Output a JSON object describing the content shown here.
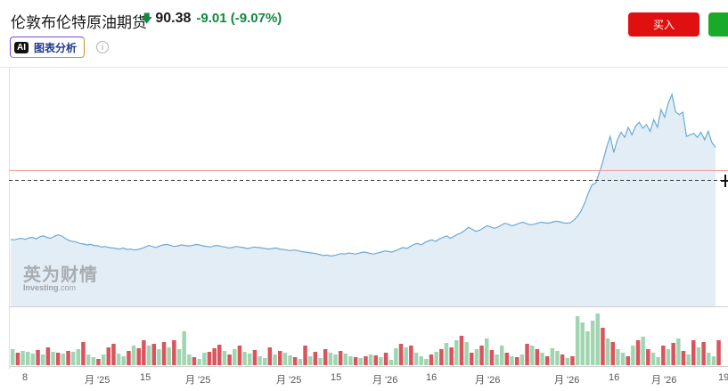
{
  "header": {
    "title": "伦敦布伦特原油期货",
    "price": "90.38",
    "change": "-9.01 (-9.07%)",
    "ai_badge": "AI",
    "ai_label": "图表分析",
    "info_glyph": "i",
    "buy_label": "买入",
    "sell_label": ""
  },
  "watermark": {
    "cn": "英为财情",
    "en_bold": "Investing",
    "en_suffix": ".com"
  },
  "colors": {
    "line": "#6aaad6",
    "area": "#e3edf6",
    "up_volume": "#9fd6b0",
    "down_volume": "#d9545c",
    "ref_line": "#f0a0a0",
    "price_down": "#0f8a3f"
  },
  "chart_data": {
    "type": "area",
    "title": "",
    "xlabel": "",
    "ylabel": "",
    "x_ticks": [
      "8",
      "月 '25",
      "15",
      "月 '25",
      "月 '25",
      "15",
      "月 '26",
      "16",
      "月 '26",
      "月 '26",
      "16",
      "月 '26",
      "19"
    ],
    "price_series": [
      48,
      47,
      49,
      50,
      48,
      51,
      52,
      49,
      53,
      55,
      52,
      50,
      54,
      57,
      55,
      50,
      46,
      44,
      43,
      40,
      39,
      37,
      38,
      36,
      35,
      33,
      34,
      32,
      31,
      30,
      29,
      31,
      28,
      29,
      27,
      28,
      30,
      33,
      36,
      34,
      32,
      35,
      37,
      38,
      36,
      34,
      35,
      37,
      36,
      35,
      36,
      38,
      37,
      35,
      34,
      33,
      35,
      36,
      34,
      33,
      31,
      32,
      34,
      33,
      32,
      30,
      31,
      33,
      32,
      31,
      30,
      29,
      30,
      31,
      29,
      28,
      27,
      26,
      27,
      26,
      24,
      23,
      22,
      21,
      20,
      18,
      16,
      17,
      15,
      16,
      18,
      20,
      19,
      21,
      20,
      19,
      21,
      23,
      22,
      20,
      19,
      21,
      23,
      25,
      24,
      23,
      26,
      29,
      32,
      30,
      34,
      38,
      40,
      37,
      42,
      45,
      47,
      44,
      49,
      52,
      55,
      50,
      54,
      58,
      61,
      66,
      72,
      68,
      64,
      66,
      70,
      75,
      73,
      70,
      72,
      76,
      80,
      78,
      75,
      77,
      80,
      82,
      79,
      77,
      78,
      80,
      82,
      81,
      80,
      82,
      84,
      83,
      81,
      80,
      81,
      86,
      94,
      104,
      120,
      140,
      156,
      159,
      180,
      202,
      230,
      252,
      220,
      245,
      260,
      250,
      270,
      255,
      272,
      280,
      268,
      275,
      262,
      285,
      270,
      305,
      290,
      318,
      335,
      301,
      295,
      300,
      252,
      255,
      258,
      250,
      260,
      245,
      262,
      240,
      230
    ],
    "volume_series": [
      {
        "v": 18,
        "d": false
      },
      {
        "v": 14,
        "d": true
      },
      {
        "v": 16,
        "d": false
      },
      {
        "v": 15,
        "d": false
      },
      {
        "v": 13,
        "d": false
      },
      {
        "v": 17,
        "d": true
      },
      {
        "v": 12,
        "d": false
      },
      {
        "v": 20,
        "d": true
      },
      {
        "v": 15,
        "d": false
      },
      {
        "v": 14,
        "d": true
      },
      {
        "v": 13,
        "d": false
      },
      {
        "v": 16,
        "d": true
      },
      {
        "v": 15,
        "d": false
      },
      {
        "v": 18,
        "d": false
      },
      {
        "v": 26,
        "d": true
      },
      {
        "v": 12,
        "d": false
      },
      {
        "v": 9,
        "d": false
      },
      {
        "v": 7,
        "d": true
      },
      {
        "v": 12,
        "d": false
      },
      {
        "v": 20,
        "d": true
      },
      {
        "v": 24,
        "d": true
      },
      {
        "v": 13,
        "d": false
      },
      {
        "v": 10,
        "d": false
      },
      {
        "v": 16,
        "d": true
      },
      {
        "v": 22,
        "d": false
      },
      {
        "v": 19,
        "d": true
      },
      {
        "v": 28,
        "d": true
      },
      {
        "v": 22,
        "d": false
      },
      {
        "v": 24,
        "d": true
      },
      {
        "v": 18,
        "d": false
      },
      {
        "v": 26,
        "d": true
      },
      {
        "v": 20,
        "d": false
      },
      {
        "v": 28,
        "d": true
      },
      {
        "v": 18,
        "d": false
      },
      {
        "v": 38,
        "d": false
      },
      {
        "v": 12,
        "d": false
      },
      {
        "v": 9,
        "d": true
      },
      {
        "v": 7,
        "d": false
      },
      {
        "v": 14,
        "d": false
      },
      {
        "v": 15,
        "d": true
      },
      {
        "v": 19,
        "d": true
      },
      {
        "v": 23,
        "d": true
      },
      {
        "v": 16,
        "d": false
      },
      {
        "v": 12,
        "d": true
      },
      {
        "v": 18,
        "d": false
      },
      {
        "v": 22,
        "d": true
      },
      {
        "v": 15,
        "d": false
      },
      {
        "v": 13,
        "d": false
      },
      {
        "v": 17,
        "d": true
      },
      {
        "v": 10,
        "d": false
      },
      {
        "v": 8,
        "d": false
      },
      {
        "v": 20,
        "d": true
      },
      {
        "v": 12,
        "d": false
      },
      {
        "v": 16,
        "d": true
      },
      {
        "v": 14,
        "d": false
      },
      {
        "v": 11,
        "d": false
      },
      {
        "v": 9,
        "d": true
      },
      {
        "v": 7,
        "d": false
      },
      {
        "v": 22,
        "d": true
      },
      {
        "v": 10,
        "d": false
      },
      {
        "v": 15,
        "d": true
      },
      {
        "v": 8,
        "d": false
      },
      {
        "v": 18,
        "d": true
      },
      {
        "v": 14,
        "d": false
      },
      {
        "v": 12,
        "d": false
      },
      {
        "v": 16,
        "d": true
      },
      {
        "v": 13,
        "d": false
      },
      {
        "v": 10,
        "d": false
      },
      {
        "v": 9,
        "d": true
      },
      {
        "v": 8,
        "d": false
      },
      {
        "v": 10,
        "d": true
      },
      {
        "v": 12,
        "d": false
      },
      {
        "v": 11,
        "d": true
      },
      {
        "v": 9,
        "d": false
      },
      {
        "v": 14,
        "d": true
      },
      {
        "v": 6,
        "d": false
      },
      {
        "v": 19,
        "d": false
      },
      {
        "v": 24,
        "d": true
      },
      {
        "v": 20,
        "d": false
      },
      {
        "v": 22,
        "d": true
      },
      {
        "v": 14,
        "d": false
      },
      {
        "v": 10,
        "d": false
      },
      {
        "v": 7,
        "d": false
      },
      {
        "v": 12,
        "d": true
      },
      {
        "v": 15,
        "d": false
      },
      {
        "v": 18,
        "d": true
      },
      {
        "v": 25,
        "d": false
      },
      {
        "v": 20,
        "d": true
      },
      {
        "v": 28,
        "d": false
      },
      {
        "v": 33,
        "d": true
      },
      {
        "v": 26,
        "d": false
      },
      {
        "v": 14,
        "d": true
      },
      {
        "v": 18,
        "d": false
      },
      {
        "v": 22,
        "d": true
      },
      {
        "v": 30,
        "d": false
      },
      {
        "v": 17,
        "d": true
      },
      {
        "v": 12,
        "d": false
      },
      {
        "v": 22,
        "d": false
      },
      {
        "v": 14,
        "d": true
      },
      {
        "v": 10,
        "d": false
      },
      {
        "v": 9,
        "d": true
      },
      {
        "v": 12,
        "d": false
      },
      {
        "v": 24,
        "d": true
      },
      {
        "v": 22,
        "d": false
      },
      {
        "v": 18,
        "d": true
      },
      {
        "v": 14,
        "d": false
      },
      {
        "v": 10,
        "d": true
      },
      {
        "v": 19,
        "d": false
      },
      {
        "v": 16,
        "d": false
      },
      {
        "v": 12,
        "d": true
      },
      {
        "v": 8,
        "d": false
      },
      {
        "v": 10,
        "d": true
      },
      {
        "v": 55,
        "d": false
      },
      {
        "v": 48,
        "d": false
      },
      {
        "v": 38,
        "d": false
      },
      {
        "v": 50,
        "d": false
      },
      {
        "v": 58,
        "d": false
      },
      {
        "v": 42,
        "d": true
      },
      {
        "v": 30,
        "d": false
      },
      {
        "v": 26,
        "d": true
      },
      {
        "v": 18,
        "d": false
      },
      {
        "v": 14,
        "d": false
      },
      {
        "v": 10,
        "d": true
      },
      {
        "v": 22,
        "d": false
      },
      {
        "v": 28,
        "d": true
      },
      {
        "v": 32,
        "d": false
      },
      {
        "v": 18,
        "d": true
      },
      {
        "v": 14,
        "d": false
      },
      {
        "v": 9,
        "d": false
      },
      {
        "v": 22,
        "d": true
      },
      {
        "v": 18,
        "d": false
      },
      {
        "v": 25,
        "d": true
      },
      {
        "v": 30,
        "d": false
      },
      {
        "v": 16,
        "d": true
      },
      {
        "v": 12,
        "d": false
      },
      {
        "v": 28,
        "d": true
      },
      {
        "v": 20,
        "d": false
      },
      {
        "v": 26,
        "d": true
      },
      {
        "v": 14,
        "d": false
      },
      {
        "v": 10,
        "d": false
      },
      {
        "v": 28,
        "d": true
      }
    ]
  }
}
